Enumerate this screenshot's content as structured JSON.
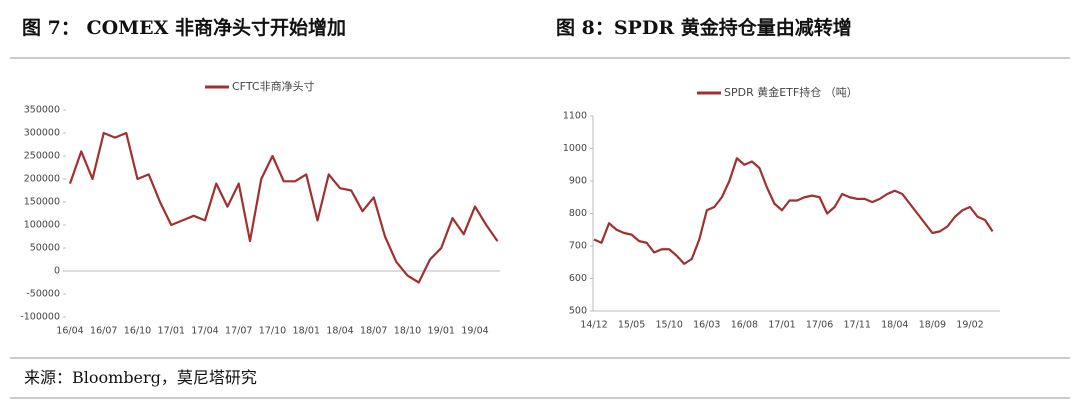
{
  "chart_data": [
    {
      "type": "line",
      "title": "图 7： COMEX 非商净头寸开始增加",
      "categories": [
        "16/04",
        null,
        null,
        "16/07",
        null,
        null,
        "16/10",
        null,
        null,
        "17/01",
        null,
        null,
        "17/04",
        null,
        null,
        "17/07",
        null,
        null,
        "17/10",
        null,
        null,
        "18/01",
        null,
        null,
        "18/04",
        null,
        null,
        "18/07",
        null,
        null,
        "18/10",
        null,
        null,
        "19/01",
        null,
        null,
        "19/04",
        null,
        null
      ],
      "series": [
        {
          "name": "CFTC非商净头寸",
          "color": "#a1302f",
          "values": [
            190000,
            260000,
            200000,
            300000,
            290000,
            300000,
            200000,
            210000,
            150000,
            100000,
            110000,
            120000,
            110000,
            190000,
            140000,
            190000,
            65000,
            200000,
            250000,
            195000,
            195000,
            210000,
            110000,
            210000,
            180000,
            175000,
            130000,
            160000,
            75000,
            20000,
            -10000,
            -25000,
            25000,
            50000,
            115000,
            80000,
            140000,
            100000,
            65000
          ]
        }
      ],
      "ylim": [
        -100000,
        350000
      ],
      "yticks": [
        -100000,
        -50000,
        0,
        50000,
        100000,
        150000,
        200000,
        250000,
        300000,
        350000
      ],
      "legend": "top"
    },
    {
      "type": "line",
      "title": "图 8：SPDR 黄金持仓量由减转增",
      "categories": [
        "14/12",
        null,
        null,
        null,
        null,
        "15/05",
        null,
        null,
        null,
        null,
        "15/10",
        null,
        null,
        null,
        null,
        "16/03",
        null,
        null,
        null,
        null,
        "16/08",
        null,
        null,
        null,
        null,
        "17/01",
        null,
        null,
        null,
        null,
        "17/06",
        null,
        null,
        null,
        null,
        "17/11",
        null,
        null,
        null,
        null,
        "18/04",
        null,
        null,
        null,
        null,
        "18/09",
        null,
        null,
        null,
        null,
        "19/02",
        null,
        null,
        null
      ],
      "series": [
        {
          "name": "SPDR 黄金ETF持仓 （吨）",
          "color": "#a1302f",
          "values": [
            720,
            710,
            770,
            750,
            740,
            735,
            715,
            710,
            680,
            690,
            690,
            670,
            645,
            660,
            720,
            810,
            820,
            850,
            900,
            970,
            950,
            960,
            940,
            880,
            830,
            810,
            840,
            840,
            850,
            855,
            850,
            800,
            820,
            860,
            850,
            845,
            845,
            835,
            845,
            860,
            870,
            860,
            830,
            800,
            770,
            740,
            745,
            760,
            790,
            810,
            820,
            790,
            780,
            745
          ]
        }
      ],
      "ylim": [
        500,
        1100
      ],
      "yticks": [
        500,
        600,
        700,
        800,
        900,
        1000,
        1100
      ],
      "legend": "top"
    }
  ],
  "source": "来源：Bloomberg，莫尼塔研究"
}
